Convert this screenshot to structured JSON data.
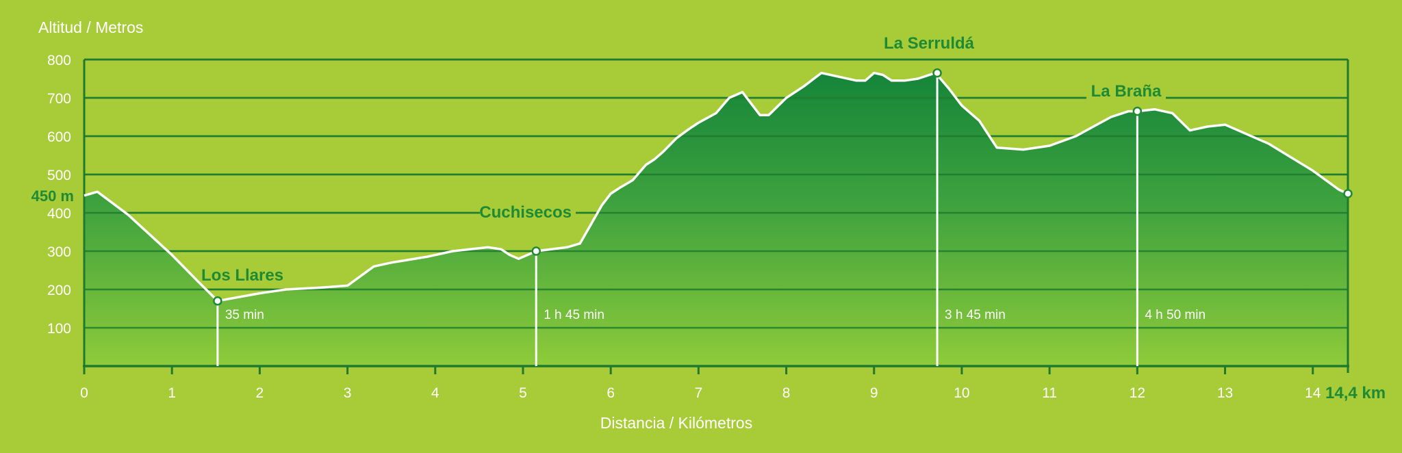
{
  "chart_data": {
    "type": "area",
    "ylabel": "Altitud / Metros",
    "xlabel": "Distancia / Kilómetros",
    "xlim": [
      0,
      14.4
    ],
    "ylim": [
      0,
      800
    ],
    "y_ticks": [
      100,
      200,
      300,
      400,
      500,
      600,
      700,
      800
    ],
    "x_ticks": [
      0,
      1,
      2,
      3,
      4,
      5,
      6,
      7,
      8,
      9,
      10,
      11,
      12,
      13,
      14
    ],
    "grid": true,
    "start_label": "450 m",
    "end_label": "14,4 km",
    "colors": {
      "background": "#a8cc38",
      "fill_top": "#1a8a3c",
      "fill_bottom": "#8ecb3a",
      "line": "#ffffff",
      "text_green": "#1e8a34"
    },
    "profile": {
      "x": [
        0,
        0.15,
        0.5,
        1.0,
        1.3,
        1.52,
        2.0,
        2.3,
        2.7,
        3.0,
        3.3,
        3.5,
        3.9,
        4.2,
        4.6,
        4.75,
        4.85,
        4.95,
        5.05,
        5.15,
        5.5,
        5.65,
        5.8,
        5.9,
        6.0,
        6.1,
        6.25,
        6.4,
        6.5,
        6.6,
        6.75,
        6.9,
        7.0,
        7.2,
        7.35,
        7.5,
        7.6,
        7.7,
        7.8,
        8.0,
        8.2,
        8.4,
        8.6,
        8.8,
        8.9,
        9.0,
        9.1,
        9.2,
        9.35,
        9.5,
        9.7,
        9.85,
        10.0,
        10.2,
        10.4,
        10.7,
        11.0,
        11.3,
        11.5,
        11.7,
        11.9,
        12.0,
        12.2,
        12.4,
        12.6,
        12.8,
        13.0,
        13.5,
        14.0,
        14.3,
        14.4
      ],
      "y": [
        445,
        455,
        395,
        290,
        220,
        170,
        190,
        200,
        205,
        210,
        260,
        270,
        285,
        300,
        310,
        305,
        290,
        280,
        290,
        300,
        310,
        320,
        380,
        420,
        450,
        465,
        485,
        525,
        540,
        560,
        595,
        620,
        635,
        660,
        700,
        715,
        685,
        655,
        655,
        700,
        730,
        765,
        755,
        745,
        745,
        765,
        760,
        745,
        745,
        750,
        765,
        725,
        680,
        640,
        570,
        565,
        575,
        600,
        625,
        650,
        665,
        665,
        670,
        660,
        615,
        625,
        630,
        580,
        510,
        460,
        450
      ]
    },
    "waypoints": [
      {
        "name": "Los Llares",
        "x": 1.52,
        "y": 170,
        "time": "35 min"
      },
      {
        "name": "Cuchisecos",
        "x": 5.15,
        "y": 300,
        "time": "1 h 45 min"
      },
      {
        "name": "La Serruldá",
        "x": 9.72,
        "y": 765,
        "time": "3 h 45 min"
      },
      {
        "name": "La Braña",
        "x": 12.0,
        "y": 665,
        "time": "4 h 50 min"
      }
    ]
  }
}
